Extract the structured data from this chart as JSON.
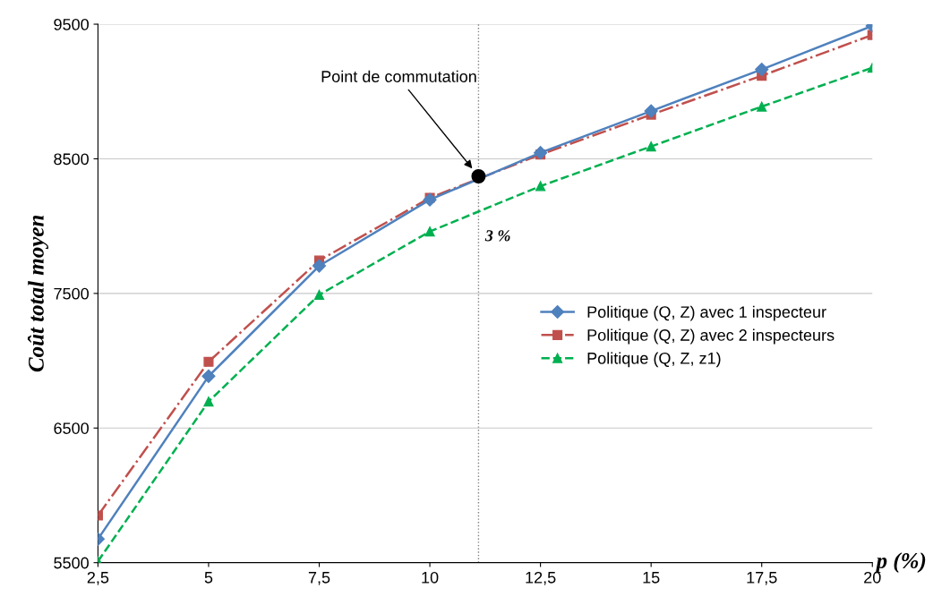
{
  "chart_data": {
    "type": "line",
    "xlabel": "p (%)",
    "ylabel": "Coût total moyen",
    "x": [
      2.5,
      5,
      7.5,
      10,
      12.5,
      15,
      17.5,
      20
    ],
    "xlim": [
      2.5,
      20
    ],
    "xticks": [
      {
        "value": 2.5,
        "label": "2,5"
      },
      5,
      {
        "value": 7.5,
        "label": "7,5"
      },
      10,
      {
        "value": 12.5,
        "label": "12,5"
      },
      15,
      {
        "value": 17.5,
        "label": "17,5"
      },
      20
    ],
    "ylim": [
      5500,
      9500
    ],
    "yticks": [
      5500,
      6500,
      7500,
      8500,
      9500
    ],
    "grid": "y",
    "legend": "right",
    "series": [
      {
        "name": "Politique (Q, Z) avec 1 inspecteur",
        "color": "#4f81bd",
        "marker": "diamond",
        "line_style": "solid",
        "values": [
          5675,
          6885,
          7705,
          8196,
          8545,
          8855,
          9164,
          9487
        ]
      },
      {
        "name": "Politique (Q, Z) avec 2 inspecteurs",
        "color": "#c0504d",
        "marker": "square",
        "line_style": "dashdot",
        "values": [
          5850,
          6992,
          7745,
          8210,
          8532,
          8828,
          9117,
          9420
        ]
      },
      {
        "name": "Politique (Q, Z, z1)",
        "color": "#00b050",
        "marker": "triangle",
        "line_style": "dashed",
        "values": [
          5510,
          6697,
          7490,
          7960,
          8297,
          8592,
          8888,
          9177
        ]
      },
      {
        "type": "scatter",
        "color": "#000000",
        "marker": "circle",
        "x": [
          11.1
        ],
        "values": [
          8370
        ]
      }
    ],
    "ref_lines": [
      {
        "axis": "x",
        "value": 11.1,
        "color": "#808080",
        "line_style": "dotted"
      }
    ],
    "annotations": [
      "Point de commutation",
      {
        "text": "3 %",
        "x": 11.7,
        "y": 8170
      }
    ]
  }
}
